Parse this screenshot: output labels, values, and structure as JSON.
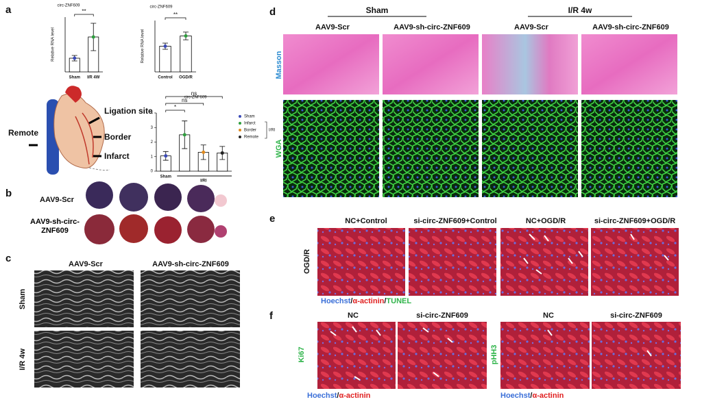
{
  "panels": {
    "a": {
      "label": "a",
      "charts": [
        {
          "type": "bar",
          "title": "circ-ZNF609",
          "y_label": "Relative RNA level",
          "categories": [
            "Sham",
            "I/R 4W"
          ],
          "values": [
            1.0,
            2.55
          ],
          "errors": [
            0.2,
            1.0
          ],
          "colors": [
            "#3b4bb8",
            "#2e9e3e"
          ],
          "ylim": [
            0,
            4
          ],
          "comparisons": [
            {
              "from": 0,
              "to": 1,
              "label": "**"
            }
          ]
        },
        {
          "type": "bar",
          "title": "circ-ZNF609",
          "y_label": "Relative RNA level",
          "categories": [
            "Control",
            "OGD/R"
          ],
          "values": [
            1.0,
            1.4
          ],
          "errors": [
            0.12,
            0.15
          ],
          "colors": [
            "#3b4bb8",
            "#2e9e3e"
          ],
          "ylim": [
            0,
            2
          ],
          "comparisons": [
            {
              "from": 0,
              "to": 1,
              "label": "**"
            }
          ]
        },
        {
          "type": "bar",
          "title": "circ-ZNF609",
          "categories": [
            "Sham",
            "Infarct",
            "Border",
            "Remote"
          ],
          "values": [
            1.05,
            2.5,
            1.3,
            1.25
          ],
          "errors": [
            0.3,
            0.95,
            0.5,
            0.45
          ],
          "colors": [
            "#3b4bb8",
            "#2e9e3e",
            "#e08a1e",
            "#222222"
          ],
          "ylim": [
            0,
            4
          ],
          "yticks": [
            0,
            1,
            2,
            3,
            4
          ],
          "group_label": "I/RI",
          "comparisons": [
            {
              "from": 0,
              "to": 1,
              "label": "*"
            },
            {
              "from": 0,
              "to": 2,
              "label": "ns"
            },
            {
              "from": 0,
              "to": 3,
              "label": "ns"
            }
          ]
        }
      ],
      "heart_labels": [
        "Ligation site",
        "Border",
        "Infarct",
        "Remote"
      ]
    },
    "b": {
      "label": "b",
      "rows": [
        "AAV9-Scr",
        "AAV9-sh-circ-ZNF609"
      ]
    },
    "c": {
      "label": "c",
      "columns": [
        "AAV9-Scr",
        "AAV9-sh-circ-ZNF609"
      ],
      "rows": [
        "Sham",
        "I/R 4w"
      ]
    },
    "d": {
      "label": "d",
      "groups": [
        "Sham",
        "I/R 4w"
      ],
      "columns": [
        "AAV9-Scr",
        "AAV9-sh-circ-ZNF609",
        "AAV9-Scr",
        "AAV9-sh-circ-ZNF609"
      ],
      "rows": [
        "Masson",
        "WGA"
      ]
    },
    "e": {
      "label": "e",
      "columns": [
        "NC+Control",
        "si-circ-ZNF609+Control",
        "NC+OGD/R",
        "si-circ-ZNF609+OGD/R"
      ],
      "row": "OGD/R",
      "stain": [
        "Hoechst",
        "/",
        "α-actinin",
        "/",
        "TUNEL"
      ]
    },
    "f": {
      "label": "f",
      "columns": [
        "NC",
        "si-circ-ZNF609",
        "NC",
        "si-circ-ZNF609"
      ],
      "rows": [
        "Ki67",
        "pHH3"
      ],
      "stain": [
        "Hoechst",
        "/",
        "α-actinin"
      ]
    }
  }
}
